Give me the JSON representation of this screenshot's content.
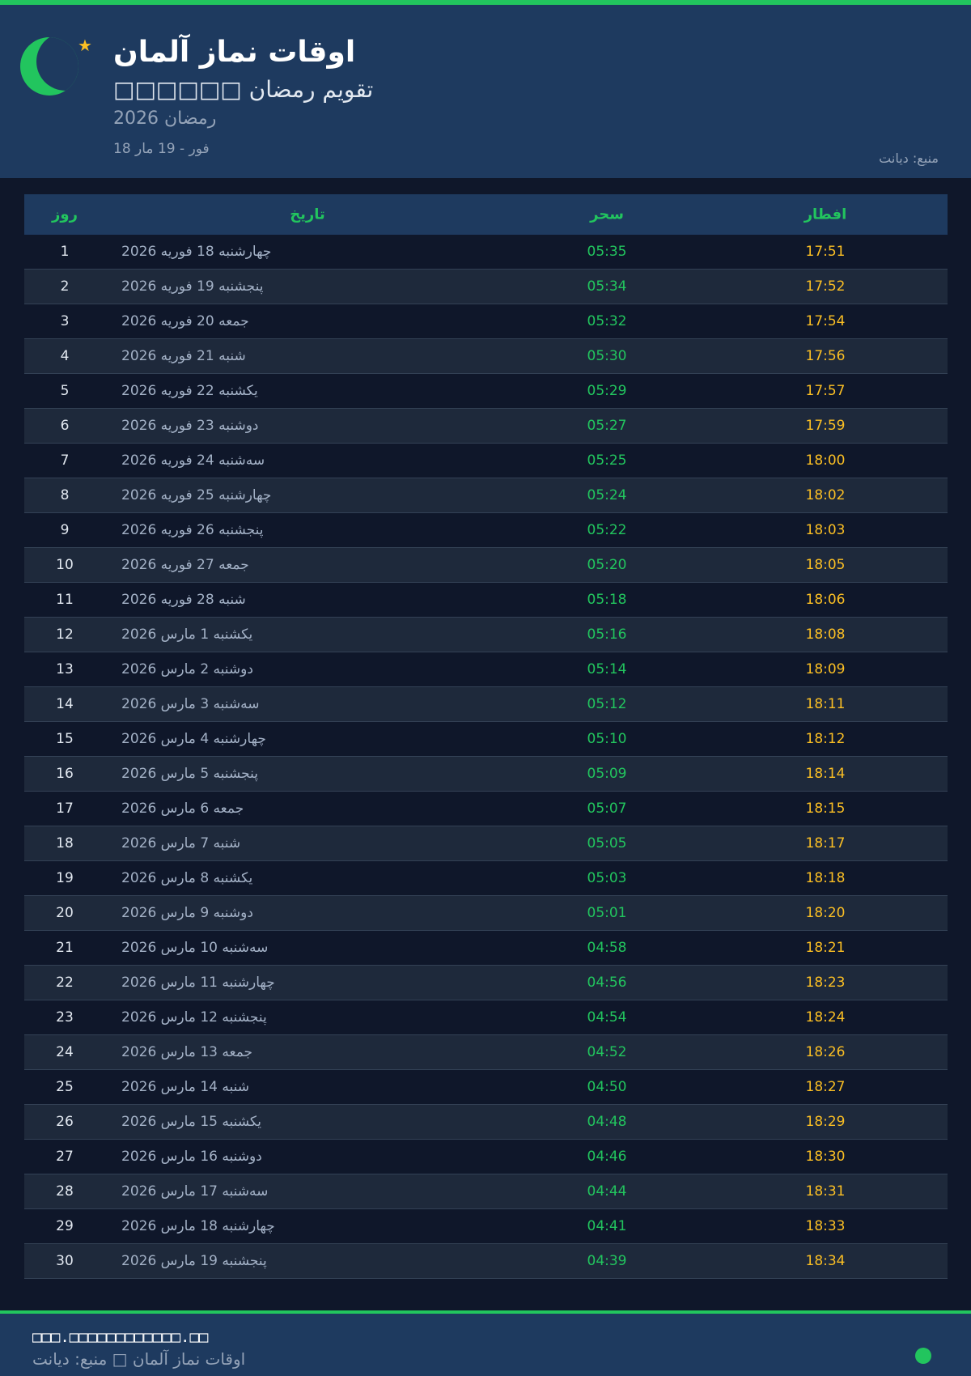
{
  "colors": {
    "accent": "#22c55e",
    "iftar": "#fbbf24",
    "header_bg": "#1e3a5f",
    "page_bg": "#0f172a"
  },
  "header": {
    "icon": "crescent-moon-icon",
    "title": "اوقات نماز آلمان",
    "subtitle": "□□□□□□ تقویم رمضان",
    "year": "رمضان 2026",
    "range": "18 فور - 19 مار",
    "source": "منبع: دیانت"
  },
  "table": {
    "headers": {
      "day": "روز",
      "date": "تاریخ",
      "sahar": "سحر",
      "iftar": "افطار"
    },
    "rows": [
      [
        "1",
        "چهارشنبه 18 فوریه 2026",
        "05:35",
        "17:51"
      ],
      [
        "2",
        "پنجشنبه 19 فوریه 2026",
        "05:34",
        "17:52"
      ],
      [
        "3",
        "جمعه 20 فوریه 2026",
        "05:32",
        "17:54"
      ],
      [
        "4",
        "شنبه 21 فوریه 2026",
        "05:30",
        "17:56"
      ],
      [
        "5",
        "یکشنبه 22 فوریه 2026",
        "05:29",
        "17:57"
      ],
      [
        "6",
        "دوشنبه 23 فوریه 2026",
        "05:27",
        "17:59"
      ],
      [
        "7",
        "سه‌شنبه 24 فوریه 2026",
        "05:25",
        "18:00"
      ],
      [
        "8",
        "چهارشنبه 25 فوریه 2026",
        "05:24",
        "18:02"
      ],
      [
        "9",
        "پنجشنبه 26 فوریه 2026",
        "05:22",
        "18:03"
      ],
      [
        "10",
        "جمعه 27 فوریه 2026",
        "05:20",
        "18:05"
      ],
      [
        "11",
        "شنبه 28 فوریه 2026",
        "05:18",
        "18:06"
      ],
      [
        "12",
        "یکشنبه 1 مارس 2026",
        "05:16",
        "18:08"
      ],
      [
        "13",
        "دوشنبه 2 مارس 2026",
        "05:14",
        "18:09"
      ],
      [
        "14",
        "سه‌شنبه 3 مارس 2026",
        "05:12",
        "18:11"
      ],
      [
        "15",
        "چهارشنبه 4 مارس 2026",
        "05:10",
        "18:12"
      ],
      [
        "16",
        "پنجشنبه 5 مارس 2026",
        "05:09",
        "18:14"
      ],
      [
        "17",
        "جمعه 6 مارس 2026",
        "05:07",
        "18:15"
      ],
      [
        "18",
        "شنبه 7 مارس 2026",
        "05:05",
        "18:17"
      ],
      [
        "19",
        "یکشنبه 8 مارس 2026",
        "05:03",
        "18:18"
      ],
      [
        "20",
        "دوشنبه 9 مارس 2026",
        "05:01",
        "18:20"
      ],
      [
        "21",
        "سه‌شنبه 10 مارس 2026",
        "04:58",
        "18:21"
      ],
      [
        "22",
        "چهارشنبه 11 مارس 2026",
        "04:56",
        "18:23"
      ],
      [
        "23",
        "پنجشنبه 12 مارس 2026",
        "04:54",
        "18:24"
      ],
      [
        "24",
        "جمعه 13 مارس 2026",
        "04:52",
        "18:26"
      ],
      [
        "25",
        "شنبه 14 مارس 2026",
        "04:50",
        "18:27"
      ],
      [
        "26",
        "یکشنبه 15 مارس 2026",
        "04:48",
        "18:29"
      ],
      [
        "27",
        "دوشنبه 16 مارس 2026",
        "04:46",
        "18:30"
      ],
      [
        "28",
        "سه‌شنبه 17 مارس 2026",
        "04:44",
        "18:31"
      ],
      [
        "29",
        "چهارشنبه 18 مارس 2026",
        "04:41",
        "18:33"
      ],
      [
        "30",
        "پنجشنبه 19 مارس 2026",
        "04:39",
        "18:34"
      ]
    ]
  },
  "footer": {
    "site": "□□□.□□□□□□□□□□□□.□□",
    "tagline": "اوقات نماز آلمان □ منبع: دیانت",
    "status_icon": "status-dot-icon"
  }
}
